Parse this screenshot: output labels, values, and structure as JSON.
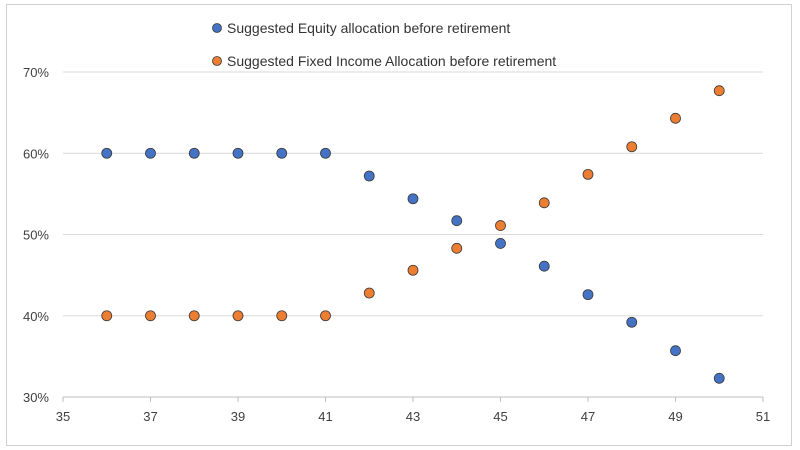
{
  "chart_data": {
    "type": "scatter",
    "title": "",
    "xlabel": "",
    "ylabel": "",
    "xlim": [
      35,
      51
    ],
    "ylim": [
      0.3,
      0.7
    ],
    "x_ticks": [
      35,
      37,
      39,
      41,
      43,
      45,
      47,
      49,
      51
    ],
    "x_tick_labels": [
      "35",
      "37",
      "39",
      "41",
      "43",
      "45",
      "47",
      "49",
      "51"
    ],
    "y_ticks": [
      0.3,
      0.4,
      0.5,
      0.6,
      0.7
    ],
    "y_tick_labels": [
      "30%",
      "40%",
      "50%",
      "60%",
      "70%"
    ],
    "grid": "horizontal",
    "legend_position": "top",
    "series": [
      {
        "name": "Suggested Equity allocation before retirement",
        "color": "#4472C4",
        "x": [
          36,
          37,
          38,
          39,
          40,
          41,
          42,
          43,
          44,
          45,
          46,
          47,
          48,
          49,
          50
        ],
        "y": [
          0.6,
          0.6,
          0.6,
          0.6,
          0.6,
          0.6,
          0.572,
          0.544,
          0.517,
          0.489,
          0.461,
          0.426,
          0.392,
          0.357,
          0.323
        ]
      },
      {
        "name": "Suggested Fixed Income Allocation before retirement",
        "color": "#ED7D31",
        "x": [
          36,
          37,
          38,
          39,
          40,
          41,
          42,
          43,
          44,
          45,
          46,
          47,
          48,
          49,
          50
        ],
        "y": [
          0.4,
          0.4,
          0.4,
          0.4,
          0.4,
          0.4,
          0.428,
          0.456,
          0.483,
          0.511,
          0.539,
          0.574,
          0.608,
          0.643,
          0.677
        ]
      }
    ]
  }
}
